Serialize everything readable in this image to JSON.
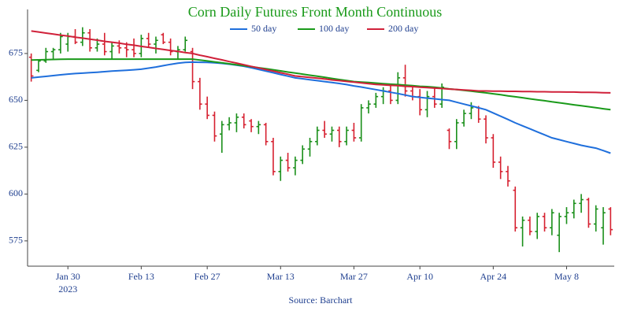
{
  "chart_data": {
    "type": "ohlc",
    "title": "Corn Daily Futures Front Month Continuous",
    "source": "Source: Barchart",
    "year_label": "2023",
    "categories": [
      "2023-01-23",
      "2023-01-24",
      "2023-01-25",
      "2023-01-26",
      "2023-01-27",
      "2023-01-30",
      "2023-01-31",
      "2023-02-01",
      "2023-02-02",
      "2023-02-03",
      "2023-02-06",
      "2023-02-07",
      "2023-02-08",
      "2023-02-09",
      "2023-02-10",
      "2023-02-13",
      "2023-02-14",
      "2023-02-15",
      "2023-02-16",
      "2023-02-17",
      "2023-02-21",
      "2023-02-22",
      "2023-02-23",
      "2023-02-24",
      "2023-02-27",
      "2023-02-28",
      "2023-03-01",
      "2023-03-02",
      "2023-03-03",
      "2023-03-06",
      "2023-03-07",
      "2023-03-08",
      "2023-03-09",
      "2023-03-10",
      "2023-03-13",
      "2023-03-14",
      "2023-03-15",
      "2023-03-16",
      "2023-03-17",
      "2023-03-20",
      "2023-03-21",
      "2023-03-22",
      "2023-03-23",
      "2023-03-24",
      "2023-03-27",
      "2023-03-28",
      "2023-03-29",
      "2023-03-30",
      "2023-03-31",
      "2023-04-03",
      "2023-04-04",
      "2023-04-05",
      "2023-04-06",
      "2023-04-10",
      "2023-04-11",
      "2023-04-12",
      "2023-04-13",
      "2023-04-14",
      "2023-04-17",
      "2023-04-18",
      "2023-04-19",
      "2023-04-20",
      "2023-04-21",
      "2023-04-24",
      "2023-04-25",
      "2023-04-26",
      "2023-04-27",
      "2023-04-28",
      "2023-05-01",
      "2023-05-02",
      "2023-05-03",
      "2023-05-04",
      "2023-05-05",
      "2023-05-08",
      "2023-05-09",
      "2023-05-10",
      "2023-05-11",
      "2023-05-12",
      "2023-05-15",
      "2023-05-16"
    ],
    "open": [
      673,
      666,
      671,
      676,
      677,
      680,
      684,
      681,
      686,
      678,
      680,
      676,
      679,
      678,
      677,
      675,
      683,
      680,
      685,
      681,
      676,
      677,
      676,
      660,
      648,
      642,
      632,
      637,
      638,
      641,
      639,
      636,
      637,
      628,
      612,
      618,
      614,
      618,
      624,
      628,
      634,
      632,
      634,
      628,
      634,
      630,
      646,
      648,
      652,
      655,
      650,
      662,
      655,
      652,
      645,
      652,
      648,
      634,
      628,
      638,
      643,
      646,
      640,
      630,
      617,
      612,
      602,
      582,
      586,
      580,
      588,
      582,
      578,
      588,
      590,
      595,
      597,
      584,
      582,
      592
    ],
    "high": [
      675,
      672,
      678,
      678,
      686,
      686,
      688,
      689,
      688,
      683,
      686,
      681,
      682,
      681,
      683,
      685,
      686,
      684,
      686,
      683,
      679,
      684,
      678,
      662,
      652,
      644,
      639,
      641,
      643,
      643,
      640,
      639,
      638,
      630,
      620,
      622,
      620,
      626,
      630,
      636,
      639,
      636,
      636,
      636,
      638,
      648,
      650,
      654,
      657,
      658,
      665,
      669,
      657,
      656,
      655,
      657,
      659,
      635,
      640,
      645,
      649,
      647,
      642,
      632,
      620,
      615,
      604,
      588,
      588,
      590,
      590,
      592,
      590,
      593,
      597,
      600,
      598,
      594,
      593,
      593
    ],
    "low": [
      660,
      665,
      670,
      672,
      675,
      676,
      680,
      679,
      676,
      676,
      674,
      672,
      675,
      673,
      673,
      673,
      678,
      675,
      680,
      674,
      672,
      676,
      656,
      645,
      640,
      628,
      622,
      634,
      633,
      635,
      633,
      632,
      626,
      610,
      607,
      612,
      610,
      616,
      620,
      626,
      630,
      628,
      625,
      626,
      628,
      628,
      643,
      646,
      648,
      648,
      648,
      652,
      650,
      642,
      641,
      646,
      646,
      624,
      624,
      636,
      640,
      638,
      627,
      614,
      608,
      604,
      580,
      572,
      578,
      576,
      580,
      578,
      569,
      584,
      587,
      590,
      582,
      580,
      573,
      578
    ],
    "close": [
      663,
      671,
      676,
      677,
      684,
      684,
      681,
      686,
      678,
      680,
      676,
      679,
      678,
      677,
      675,
      683,
      680,
      682,
      681,
      676,
      677,
      682,
      660,
      648,
      642,
      631,
      637,
      638,
      641,
      637,
      636,
      637,
      628,
      612,
      618,
      614,
      618,
      624,
      628,
      634,
      632,
      634,
      628,
      634,
      630,
      646,
      648,
      652,
      655,
      650,
      662,
      655,
      652,
      645,
      652,
      648,
      657,
      628,
      638,
      643,
      646,
      640,
      630,
      617,
      612,
      607,
      582,
      586,
      580,
      588,
      582,
      590,
      588,
      590,
      595,
      597,
      584,
      592,
      590,
      581
    ],
    "up_color": "#1a8f1a",
    "down_color": "#d62030",
    "series": [
      {
        "name": "50 day",
        "color": "#1f6fdc",
        "values": [
          662,
          662.4,
          662.8,
          663.2,
          663.6,
          664,
          664.3,
          664.5,
          664.8,
          665,
          665.3,
          665.6,
          665.8,
          666,
          666.3,
          666.6,
          667.2,
          667.8,
          668.5,
          669.2,
          669.8,
          670.2,
          670.4,
          670.3,
          670.2,
          670,
          669.7,
          669.3,
          668.8,
          668.2,
          667.4,
          666.5,
          665.6,
          664.7,
          663.8,
          662.9,
          662,
          661.5,
          661,
          660.5,
          660,
          659.5,
          659,
          658.4,
          657.7,
          657.1,
          656.4,
          655.7,
          655,
          654.3,
          653.6,
          652.8,
          652,
          651.6,
          651.2,
          650.8,
          650.4,
          650,
          649,
          648,
          647,
          646,
          645,
          643.3,
          641.5,
          639.8,
          638,
          636.4,
          634.8,
          633.2,
          631.6,
          630,
          629,
          628,
          627,
          626,
          625.2,
          624.5,
          623.2,
          621.8
        ]
      },
      {
        "name": "100 day",
        "color": "#1a9a1a",
        "values": [
          671.5,
          671.6,
          671.7,
          671.8,
          671.9,
          672,
          672,
          672,
          672,
          672,
          672,
          672,
          672,
          672,
          672,
          672,
          672,
          672,
          672,
          672,
          672,
          672,
          672,
          671.5,
          671,
          670.5,
          670,
          669.5,
          669,
          668.5,
          668,
          667.4,
          666.9,
          666.3,
          665.7,
          665.1,
          664.6,
          664,
          663.4,
          662.9,
          662.3,
          661.7,
          661.1,
          660.6,
          660,
          659.7,
          659.5,
          659.2,
          658.9,
          658.6,
          658.4,
          658.1,
          657.8,
          657.5,
          657.3,
          657,
          656.6,
          656.1,
          655.7,
          655.3,
          654.9,
          654.4,
          654,
          653.5,
          653,
          652.4,
          651.9,
          651.4,
          650.8,
          650.3,
          649.8,
          649.2,
          648.7,
          648.2,
          647.6,
          647.1,
          646.6,
          646.1,
          645.5,
          645
        ]
      },
      {
        "name": "200 day",
        "color": "#d0213a",
        "values": [
          687,
          686.5,
          685.9,
          685.4,
          684.8,
          684.3,
          683.7,
          683.2,
          682.6,
          682.1,
          681.5,
          681,
          680.5,
          679.9,
          679.4,
          678.8,
          678.3,
          677.7,
          677.2,
          676.6,
          676.1,
          675.5,
          675,
          674.1,
          673.3,
          672.4,
          671.6,
          670.7,
          669.9,
          669,
          668.1,
          667.3,
          666.4,
          665.6,
          664.7,
          663.9,
          663,
          662.6,
          662.2,
          661.8,
          661.4,
          660.9,
          660.5,
          660.1,
          659.7,
          659.3,
          658.9,
          658.5,
          658.3,
          658,
          657.8,
          657.5,
          657.3,
          657,
          656.8,
          656.5,
          656.3,
          656,
          655.8,
          655.5,
          655.3,
          655,
          655,
          654.9,
          654.9,
          654.8,
          654.8,
          654.7,
          654.7,
          654.6,
          654.6,
          654.5,
          654.5,
          654.4,
          654.4,
          654.3,
          654.3,
          654.2,
          654.1,
          654
        ]
      }
    ],
    "ylim": [
      561.5,
      698.5
    ],
    "yticks": [
      575,
      600,
      625,
      650,
      675
    ],
    "xticks": [
      {
        "value": "2023-01-30",
        "label": "Jan 30"
      },
      {
        "value": "2023-02-13",
        "label": "Feb 13"
      },
      {
        "value": "2023-02-27",
        "label": "Feb 27"
      },
      {
        "value": "2023-03-13",
        "label": "Mar 13"
      },
      {
        "value": "2023-03-27",
        "label": "Mar 27"
      },
      {
        "value": "2023-04-10",
        "label": "Apr 10"
      },
      {
        "value": "2023-04-24",
        "label": "Apr 24"
      },
      {
        "value": "2023-05-08",
        "label": "May 8"
      }
    ]
  }
}
